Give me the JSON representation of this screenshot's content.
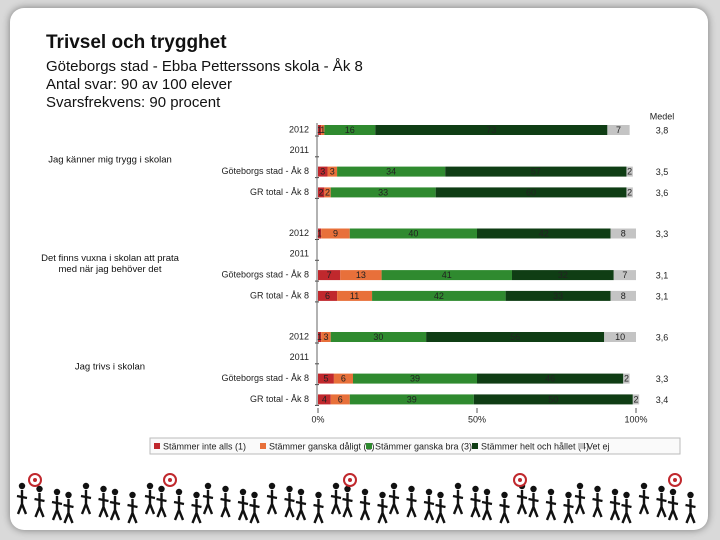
{
  "chart_data": {
    "type": "stacked-bar-horizontal",
    "title": "Trivsel och trygghet",
    "subtitle": [
      "Göteborgs stad - Ebba Petterssons skola - Åk 8",
      "Antal svar: 90 av 100 elever",
      "Svarsfrekvens: 90 procent"
    ],
    "groups": [
      {
        "label": "Jag känner mig trygg i skolan",
        "categories": [
          "2012",
          "2011",
          "Göteborgs stad - Åk 8",
          "GR total - Åk 8"
        ]
      },
      {
        "label": "Det finns vuxna i skolan att prata med när jag behöver det",
        "categories": [
          "2012",
          "2011",
          "Göteborgs stad - Åk 8",
          "GR total - Åk 8"
        ]
      },
      {
        "label": "Jag trivs i skolan",
        "categories": [
          "2012",
          "2011",
          "Göteborgs stad - Åk 8",
          "GR total - Åk 8"
        ]
      }
    ],
    "series": [
      {
        "name": "Stämmer inte alls (1)",
        "color": "#c0282d",
        "values": [
          1,
          null,
          3,
          2,
          1,
          null,
          7,
          6,
          1,
          null,
          5,
          4
        ]
      },
      {
        "name": "Stämmer ganska dåligt (2)",
        "color": "#e8703a",
        "values": [
          1,
          null,
          3,
          2,
          9,
          null,
          13,
          11,
          3,
          null,
          6,
          6
        ]
      },
      {
        "name": "Stämmer ganska bra (3)",
        "color": "#2f8a2f",
        "values": [
          16,
          null,
          34,
          33,
          40,
          null,
          41,
          42,
          30,
          null,
          39,
          39
        ]
      },
      {
        "name": "Stämmer helt och hållet (4)",
        "color": "#0f3d14",
        "values": [
          73,
          null,
          57,
          60,
          42,
          null,
          32,
          33,
          56,
          null,
          46,
          50
        ]
      },
      {
        "name": "Vet ej",
        "color": "#c4c4c4",
        "values": [
          7,
          null,
          2,
          2,
          8,
          null,
          7,
          8,
          10,
          null,
          2,
          2
        ]
      }
    ],
    "mean_title": "Medel",
    "means": [
      3.8,
      null,
      3.5,
      3.6,
      3.3,
      null,
      3.1,
      3.1,
      3.6,
      null,
      3.3,
      3.4
    ],
    "mean_labels": [
      "3,8",
      null,
      "3,5",
      "3,6",
      "3,3",
      null,
      "3,1",
      "3,1",
      "3,6",
      null,
      "3,3",
      "3,4"
    ],
    "xlim": [
      0,
      100
    ],
    "xticks": [
      {
        "value": 0,
        "label": "0%"
      },
      {
        "value": 50,
        "label": "50%"
      },
      {
        "value": 100,
        "label": "100%"
      }
    ]
  }
}
